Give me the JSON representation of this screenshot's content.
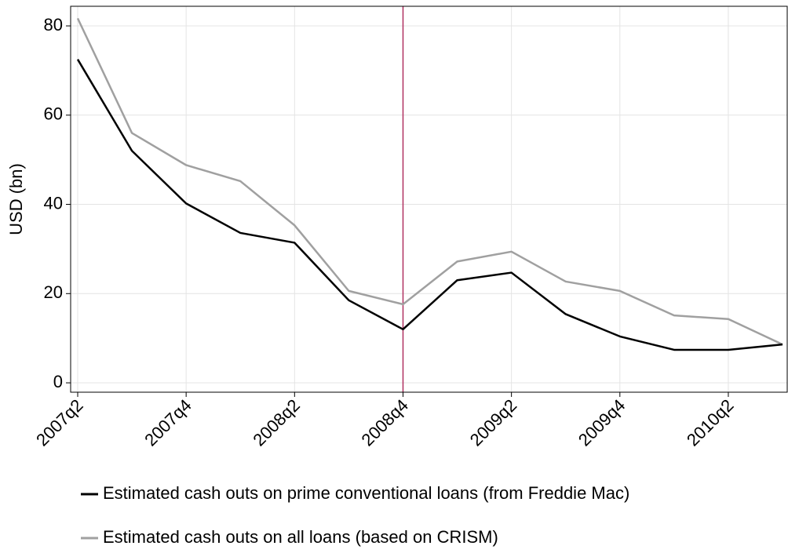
{
  "chart_data": {
    "type": "line",
    "y_label": "USD (bn)",
    "categories": [
      "2007q2",
      null,
      "2007q4",
      null,
      "2008q2",
      null,
      "2008q4",
      null,
      "2009q2",
      null,
      "2009q4",
      null,
      "2010q2",
      null
    ],
    "series": [
      {
        "name": "Estimated cash outs on prime conventional loans (from Freddie Mac)",
        "color": "#000000",
        "values": [
          72.5,
          52,
          40.2,
          33.6,
          31.4,
          18.5,
          12,
          23,
          24.7,
          15.4,
          10.4,
          7.4,
          7.4,
          8.6
        ]
      },
      {
        "name": "Estimated cash outs on all loans (based on CRISM)",
        "color": "#a0a0a0",
        "values": [
          81.7,
          56,
          48.8,
          45.2,
          35.3,
          20.6,
          17.6,
          27.2,
          29.4,
          22.7,
          20.6,
          15.1,
          14.3,
          8.6
        ]
      }
    ],
    "vline_category": 6,
    "vline_color": "#b03060",
    "ylim": [
      -2.1,
      84.4
    ],
    "yticks": [
      0,
      20,
      40,
      60,
      80
    ],
    "grid": true
  }
}
